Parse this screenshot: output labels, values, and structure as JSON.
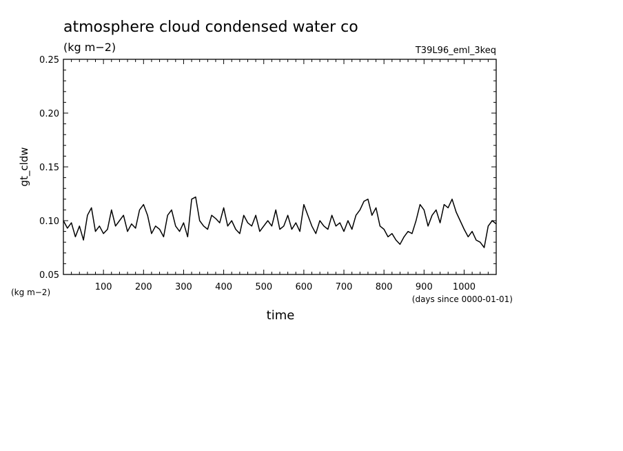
{
  "chart_data": {
    "type": "line",
    "title": "atmosphere cloud condensed water co",
    "units_label": "(kg m−2)",
    "experiment_label": "T39L96_eml_3keq",
    "ylabel": "gt_cldw",
    "y_units_label": "(kg m−2)",
    "xlabel": "time",
    "x_units_label": "(days since 0000-01-01)",
    "xlim": [
      0,
      1080
    ],
    "ylim": [
      0.05,
      0.25
    ],
    "x_ticks": [
      100,
      200,
      300,
      400,
      500,
      600,
      700,
      800,
      900,
      1000
    ],
    "x_tick_labels": [
      "100",
      "200",
      "300",
      "400",
      "500",
      "600",
      "700",
      "800",
      "900",
      "1000"
    ],
    "y_ticks": [
      0.05,
      0.1,
      0.15,
      0.2,
      0.25
    ],
    "y_tick_labels": [
      "0.05",
      "0.10",
      "0.15",
      "0.20",
      "0.25"
    ],
    "grid": false,
    "series": [
      {
        "name": "gt_cldw",
        "color": "#000000",
        "x": [
          0,
          10,
          20,
          30,
          40,
          50,
          60,
          70,
          80,
          90,
          100,
          110,
          120,
          130,
          140,
          150,
          160,
          170,
          180,
          190,
          200,
          210,
          220,
          230,
          240,
          250,
          260,
          270,
          280,
          290,
          300,
          310,
          320,
          330,
          340,
          350,
          360,
          370,
          380,
          390,
          400,
          410,
          420,
          430,
          440,
          450,
          460,
          470,
          480,
          490,
          500,
          510,
          520,
          530,
          540,
          550,
          560,
          570,
          580,
          590,
          600,
          610,
          620,
          630,
          640,
          650,
          660,
          670,
          680,
          690,
          700,
          710,
          720,
          730,
          740,
          750,
          760,
          770,
          780,
          790,
          800,
          810,
          820,
          830,
          840,
          850,
          860,
          870,
          880,
          890,
          900,
          910,
          920,
          930,
          940,
          950,
          960,
          970,
          980,
          990,
          1000,
          1010,
          1020,
          1030,
          1040,
          1050,
          1060,
          1070,
          1080
        ],
        "values": [
          0.1,
          0.093,
          0.098,
          0.085,
          0.095,
          0.082,
          0.105,
          0.112,
          0.09,
          0.095,
          0.088,
          0.092,
          0.11,
          0.095,
          0.1,
          0.105,
          0.09,
          0.097,
          0.093,
          0.11,
          0.115,
          0.105,
          0.088,
          0.095,
          0.092,
          0.085,
          0.105,
          0.11,
          0.095,
          0.09,
          0.098,
          0.085,
          0.12,
          0.122,
          0.1,
          0.095,
          0.092,
          0.105,
          0.102,
          0.098,
          0.112,
          0.095,
          0.1,
          0.092,
          0.088,
          0.105,
          0.098,
          0.095,
          0.105,
          0.09,
          0.095,
          0.1,
          0.095,
          0.11,
          0.092,
          0.095,
          0.105,
          0.092,
          0.098,
          0.09,
          0.115,
          0.105,
          0.095,
          0.088,
          0.1,
          0.095,
          0.092,
          0.105,
          0.095,
          0.098,
          0.09,
          0.1,
          0.092,
          0.105,
          0.11,
          0.118,
          0.12,
          0.105,
          0.112,
          0.095,
          0.092,
          0.085,
          0.088,
          0.082,
          0.078,
          0.085,
          0.09,
          0.088,
          0.1,
          0.115,
          0.11,
          0.095,
          0.105,
          0.11,
          0.098,
          0.115,
          0.112,
          0.12,
          0.108,
          0.1,
          0.092,
          0.085,
          0.09,
          0.082,
          0.08,
          0.075,
          0.095,
          0.1,
          0.097
        ]
      }
    ]
  }
}
